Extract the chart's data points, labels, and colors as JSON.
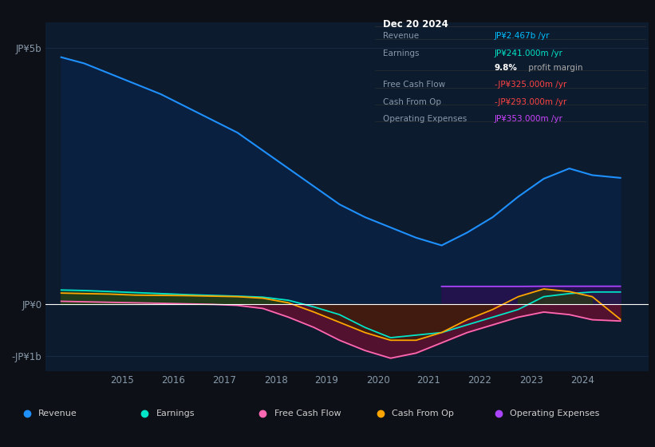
{
  "bg_color": "#0d1117",
  "plot_bg_color": "#0d1b2e",
  "grid_color": "#1e3050",
  "zero_line_color": "#ffffff",
  "info_title": "Dec 20 2024",
  "info_rows": [
    {
      "label": "Revenue",
      "value": "JP¥2.467b /yr",
      "value_color": "#00bfff"
    },
    {
      "label": "Earnings",
      "value": "JP¥241.000m /yr",
      "value_color": "#00e5c8"
    },
    {
      "label": "",
      "value": "9.8% profit margin",
      "value_color": "#cccccc"
    },
    {
      "label": "Free Cash Flow",
      "value": "-JP¥325.000m /yr",
      "value_color": "#ff4444"
    },
    {
      "label": "Cash From Op",
      "value": "-JP¥293.000m /yr",
      "value_color": "#ff4444"
    },
    {
      "label": "Operating Expenses",
      "value": "JP¥353.000m /yr",
      "value_color": "#cc44ff"
    }
  ],
  "yticks": [
    "JP¥5b",
    "JP¥0",
    "-JP¥1b"
  ],
  "ytick_values": [
    5000000000.0,
    0,
    -1000000000.0
  ],
  "years": [
    2013.8,
    2014.25,
    2014.75,
    2015.25,
    2015.75,
    2016.25,
    2016.75,
    2017.25,
    2017.75,
    2018.25,
    2018.75,
    2019.25,
    2019.75,
    2020.25,
    2020.75,
    2021.25,
    2021.75,
    2022.25,
    2022.75,
    2023.25,
    2023.75,
    2024.2,
    2024.75
  ],
  "revenue": [
    4820000000.0,
    4700000000.0,
    4500000000.0,
    4300000000.0,
    4100000000.0,
    3850000000.0,
    3600000000.0,
    3350000000.0,
    3000000000.0,
    2650000000.0,
    2300000000.0,
    1950000000.0,
    1700000000.0,
    1500000000.0,
    1300000000.0,
    1150000000.0,
    1400000000.0,
    1700000000.0,
    2100000000.0,
    2450000000.0,
    2650000000.0,
    2520000000.0,
    2467000000.0
  ],
  "earnings": [
    280000000.0,
    270000000.0,
    250000000.0,
    230000000.0,
    210000000.0,
    190000000.0,
    175000000.0,
    160000000.0,
    140000000.0,
    80000000.0,
    -50000000.0,
    -200000000.0,
    -450000000.0,
    -650000000.0,
    -600000000.0,
    -550000000.0,
    -400000000.0,
    -250000000.0,
    -100000000.0,
    150000000.0,
    210000000.0,
    241000000.0,
    241000000.0
  ],
  "free_cash_flow": [
    60000000.0,
    50000000.0,
    40000000.0,
    30000000.0,
    20000000.0,
    10000000.0,
    0,
    -20000000.0,
    -80000000.0,
    -250000000.0,
    -450000000.0,
    -700000000.0,
    -900000000.0,
    -1050000000.0,
    -950000000.0,
    -750000000.0,
    -550000000.0,
    -400000000.0,
    -250000000.0,
    -150000000.0,
    -200000000.0,
    -300000000.0,
    -325000000.0
  ],
  "cash_from_op": [
    220000000.0,
    210000000.0,
    200000000.0,
    180000000.0,
    175000000.0,
    170000000.0,
    160000000.0,
    150000000.0,
    120000000.0,
    30000000.0,
    -150000000.0,
    -350000000.0,
    -550000000.0,
    -700000000.0,
    -700000000.0,
    -550000000.0,
    -300000000.0,
    -100000000.0,
    150000000.0,
    300000000.0,
    250000000.0,
    150000000.0,
    -293000000.0
  ],
  "operating_expenses": [
    null,
    null,
    null,
    null,
    null,
    null,
    null,
    null,
    null,
    null,
    null,
    null,
    null,
    null,
    null,
    350000000.0,
    350000000.0,
    350000000.0,
    350000000.0,
    353000000.0,
    353000000.0,
    353000000.0,
    353000000.0
  ],
  "revenue_color": "#1e90ff",
  "revenue_fill": "#0a2040",
  "earnings_color": "#00e5c8",
  "earnings_fill_pos": "#0d3d30",
  "earnings_fill_neg": "#3d1010",
  "free_cash_flow_color": "#ff69b4",
  "free_cash_flow_fill_neg": "#5a1030",
  "cash_from_op_color": "#ffa500",
  "operating_expenses_color": "#aa44ff",
  "operating_expenses_fill": "#2a1050",
  "legend_items": [
    {
      "label": "Revenue",
      "color": "#1e90ff"
    },
    {
      "label": "Earnings",
      "color": "#00e5c8"
    },
    {
      "label": "Free Cash Flow",
      "color": "#ff69b4"
    },
    {
      "label": "Cash From Op",
      "color": "#ffa500"
    },
    {
      "label": "Operating Expenses",
      "color": "#aa44ff"
    }
  ],
  "xtick_labels": [
    "2015",
    "2016",
    "2017",
    "2018",
    "2019",
    "2020",
    "2021",
    "2022",
    "2023",
    "2024"
  ],
  "xtick_positions": [
    2015,
    2016,
    2017,
    2018,
    2019,
    2020,
    2021,
    2022,
    2023,
    2024
  ],
  "ylim": [
    -1300000000.0,
    5500000000.0
  ],
  "xlim": [
    2013.5,
    2025.3
  ]
}
